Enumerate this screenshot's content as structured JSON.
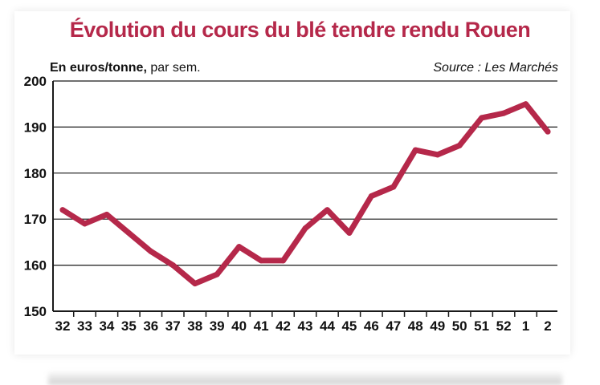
{
  "chart_data": {
    "type": "line",
    "title": "Évolution du cours du blé tendre rendu Rouen",
    "unit_label_bold": "En euros/tonne,",
    "unit_label_rest": " par sem.",
    "source": "Source : Les Marchés",
    "categories": [
      "32",
      "33",
      "34",
      "35",
      "36",
      "37",
      "38",
      "39",
      "40",
      "41",
      "42",
      "43",
      "44",
      "45",
      "46",
      "47",
      "48",
      "49",
      "50",
      "51",
      "52",
      "1",
      "2"
    ],
    "series": [
      {
        "values": [
          172,
          169,
          171,
          167,
          163,
          160,
          156,
          158,
          164,
          161,
          161,
          168,
          172,
          167,
          175,
          177,
          185,
          184,
          186,
          192,
          193,
          195,
          189
        ]
      }
    ],
    "ylim": [
      150,
      200
    ],
    "yticks": [
      150,
      160,
      170,
      180,
      190,
      200
    ],
    "grid": true,
    "line_color": "#b5284a"
  }
}
